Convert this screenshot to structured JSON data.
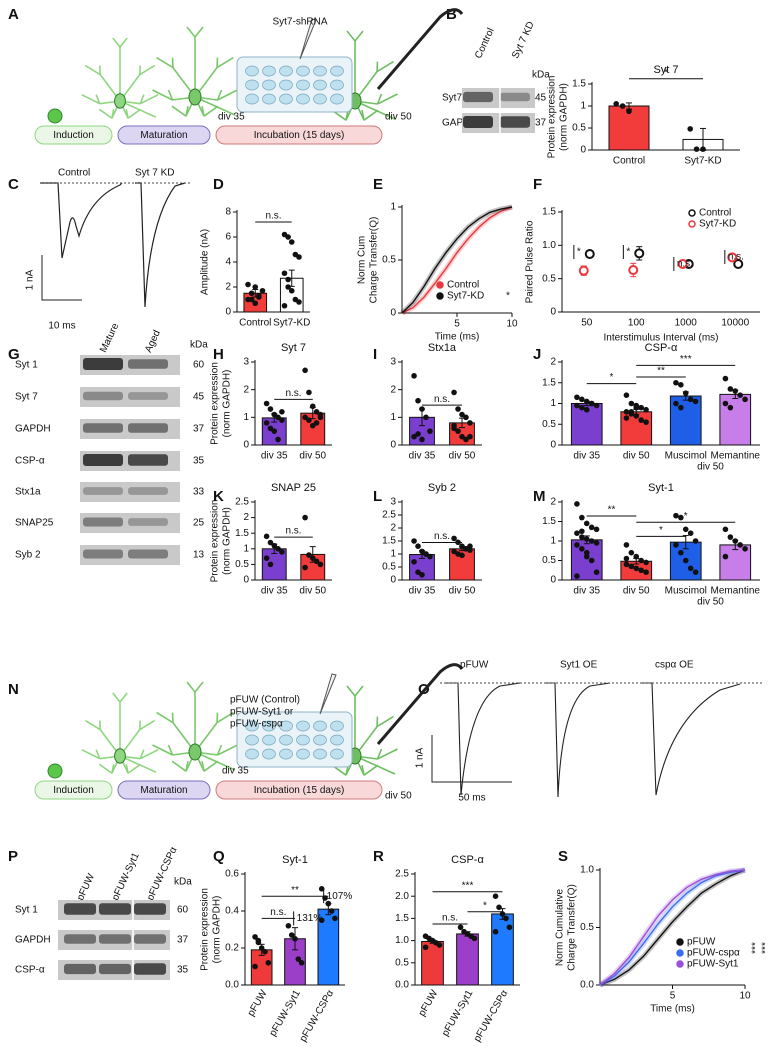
{
  "panel_labels": [
    "A",
    "B",
    "C",
    "D",
    "E",
    "F",
    "G",
    "H",
    "I",
    "J",
    "K",
    "L",
    "M",
    "N",
    "O",
    "P",
    "Q",
    "R",
    "S"
  ],
  "diagram_a": {
    "construct": [
      "Syt7-shRNA"
    ],
    "div": [
      "div 35",
      "div 50"
    ],
    "stages": [
      "Induction",
      "Maturation",
      "Incubation (15 days)"
    ]
  },
  "diagram_n": {
    "construct": [
      "pFUW (Control)",
      "pFUW-Syt1 or",
      "pFUW-cspα"
    ],
    "div": [
      "div 35",
      "div 50"
    ],
    "stages": [
      "Induction",
      "Maturation",
      "Incubation (15 days)"
    ]
  },
  "blot_b": {
    "lanes": [
      "Control",
      "Syt 7 KD"
    ],
    "kda_header": "kDa",
    "rows": [
      "Syt7",
      "GAPDH"
    ],
    "kda": [
      45,
      37
    ]
  },
  "blot_g": {
    "lanes": [
      "Mature",
      "Aged"
    ],
    "kda_header": "kDa",
    "rows": [
      "Syt 1",
      "Syt 7",
      "GAPDH",
      "CSP-α",
      "Stx1a",
      "SNAP25",
      "Syb 2"
    ],
    "kda": [
      60,
      45,
      37,
      35,
      33,
      25,
      13
    ]
  },
  "blot_p": {
    "lanes": [
      "pFUW",
      "pFUW-Syt1",
      "pFUW-CSPα"
    ],
    "kda_header": "kDa",
    "rows": [
      "Syt 1",
      "GAPDH",
      "CSP-α"
    ],
    "kda": [
      60,
      37,
      35
    ]
  },
  "trace_c": {
    "labels": [
      "Control",
      "Syt 7 KD"
    ],
    "scale": [
      "1 nA",
      "10 ms"
    ]
  },
  "trace_o": {
    "labels": [
      "pFUW",
      "Syt1 OE",
      "cspα OE"
    ],
    "scale": [
      "1 nA",
      "50 ms"
    ]
  },
  "chart_data": [
    {
      "type": "bar",
      "title": "Syt 7",
      "ylabel": [
        "Protein expression",
        "(norm GAPDH)"
      ],
      "categories": [
        "Control",
        "Syt7-KD"
      ],
      "values": [
        1.0,
        0.24
      ],
      "errors": [
        0.07,
        0.25
      ],
      "colors": [
        "#f23b3b",
        "#ffffff"
      ],
      "points": [
        [
          1.05,
          1.0,
          0.88
        ],
        [
          0.48,
          0.02,
          0.02
        ]
      ],
      "ylim": [
        0,
        1.5
      ],
      "yticks": [
        0,
        0.5,
        1,
        1.5
      ],
      "annotations": [
        "*"
      ]
    },
    {
      "type": "bar",
      "ylabel": [
        "Amplitude (nA)"
      ],
      "categories": [
        "Control",
        "Syt7-KD"
      ],
      "values": [
        1.5,
        2.7
      ],
      "errors": [
        0.3,
        0.65
      ],
      "colors": [
        "#f23b3b",
        "#ffffff"
      ],
      "points": [
        [
          1.0,
          1.5,
          0.7,
          1.2,
          1.7,
          2.2,
          1.0,
          2.0,
          1.3
        ],
        [
          6.2,
          6.0,
          5.6,
          4.6,
          4.4,
          3.1,
          2.6,
          1.7,
          1.0,
          0.8,
          0.5,
          2.0
        ]
      ],
      "ylim": [
        0,
        8
      ],
      "yticks": [
        0,
        2,
        4,
        6,
        8
      ],
      "annotations": [
        "n.s."
      ]
    },
    {
      "type": "line",
      "ylabel": [
        "Norm Cum",
        "Charge Transfer(Q)"
      ],
      "xlabel": "Time (ms)",
      "x": [
        0,
        1,
        2,
        3,
        4,
        5,
        6,
        7,
        8,
        9,
        10
      ],
      "series": [
        {
          "name": "Control",
          "color": "#e8383d",
          "values": [
            0,
            0.05,
            0.15,
            0.28,
            0.42,
            0.57,
            0.7,
            0.81,
            0.9,
            0.96,
            1
          ]
        },
        {
          "name": "Syt7-KD",
          "color": "#111111",
          "values": [
            0,
            0.1,
            0.25,
            0.42,
            0.57,
            0.7,
            0.81,
            0.89,
            0.95,
            0.98,
            1
          ]
        }
      ],
      "xlim": [
        0,
        10
      ],
      "xticks": [
        5,
        10
      ],
      "ylim": [
        0,
        1
      ],
      "yticks": [
        0,
        0.5,
        1
      ],
      "annotations": [
        "*"
      ]
    },
    {
      "type": "dot",
      "ylabel": [
        "Paired Pulse Ratio"
      ],
      "xlabel": "Interstimulus Interval (ms)",
      "categories": [
        "50",
        "100",
        "1000",
        "10000"
      ],
      "series": [
        {
          "name": "Control",
          "color": "#111111",
          "values": [
            0.87,
            0.88,
            0.72,
            0.72
          ],
          "errors": [
            0.05,
            0.1,
            0.05,
            0.05
          ]
        },
        {
          "name": "Syt7-KD",
          "color": "#e8383d",
          "values": [
            0.62,
            0.63,
            0.72,
            0.82
          ],
          "errors": [
            0.07,
            0.1,
            0.05,
            0.05
          ]
        }
      ],
      "ylim": [
        0,
        1.5
      ],
      "yticks": [
        0,
        0.5,
        {
          "value": 1,
          "label": "1.0"
        },
        1.5
      ],
      "annotations": [
        "*",
        "*",
        "n.s.",
        "n.s."
      ]
    },
    {
      "type": "bar",
      "title": "Syt 7",
      "ylabel": [
        "Protein expression",
        "(norm GAPDH)"
      ],
      "categories": [
        "div 35",
        "div 50"
      ],
      "values": [
        0.98,
        1.15
      ],
      "errors": [
        0.15,
        0.2
      ],
      "colors": [
        "#7a3fcf",
        "#f23b3b"
      ],
      "points": [
        [
          1.5,
          1.3,
          1.1,
          1.0,
          0.9,
          0.8,
          0.6,
          0.5,
          0.2,
          1.2
        ],
        [
          2.7,
          1.9,
          1.4,
          1.2,
          1.1,
          1.0,
          0.9,
          0.7,
          0.8,
          1.0
        ]
      ],
      "ylim": [
        0,
        3
      ],
      "yticks": [
        0,
        1,
        2,
        3
      ],
      "annotations": [
        "n.s."
      ]
    },
    {
      "type": "bar",
      "title": "Stx1a",
      "categories": [
        "div 35",
        "div 50"
      ],
      "values": [
        1.0,
        0.8
      ],
      "errors": [
        0.3,
        0.17
      ],
      "colors": [
        "#7a3fcf",
        "#f23b3b"
      ],
      "points": [
        [
          2.5,
          1.6,
          1.3,
          1.0,
          0.5,
          0.3,
          0.4,
          0.2
        ],
        [
          1.9,
          1.3,
          1.1,
          1.0,
          0.8,
          0.6,
          0.5,
          0.3,
          0.2,
          0.3,
          0.7
        ]
      ],
      "ylim": [
        0,
        3
      ],
      "yticks": [
        0,
        1,
        2,
        3
      ],
      "annotations": [
        "n.s."
      ]
    },
    {
      "type": "bar",
      "title": "CSP-α",
      "categories": [
        "div 35",
        "div 50",
        "Muscimol",
        "Memantine"
      ],
      "x_sublabel": "div 50",
      "values": [
        1.0,
        0.8,
        1.18,
        1.22
      ],
      "errors": [
        0.05,
        0.06,
        0.1,
        0.1
      ],
      "colors": [
        "#7a3fcf",
        "#f23b3b",
        "#1f5fe8",
        "#c77ee8"
      ],
      "points": [
        [
          1.15,
          1.1,
          1.05,
          1.0,
          0.95,
          0.95,
          0.9,
          0.85,
          1.0
        ],
        [
          1.2,
          1.0,
          0.95,
          0.9,
          0.85,
          0.8,
          0.75,
          0.7,
          0.6,
          0.55,
          0.65,
          0.8,
          0.9
        ],
        [
          1.5,
          1.45,
          1.25,
          1.1,
          1.05,
          1.0,
          0.9
        ],
        [
          1.6,
          1.35,
          1.3,
          1.2,
          1.1,
          1.0,
          0.9
        ]
      ],
      "ylim": [
        0,
        2
      ],
      "yticks": [
        0,
        0.5,
        1,
        1.5,
        2
      ],
      "annotations": [
        "*",
        "**",
        "***"
      ]
    },
    {
      "type": "bar",
      "title": "SNAP 25",
      "ylabel": [
        "Protein expression",
        "(norm GAPDH)"
      ],
      "categories": [
        "div 35",
        "div 50"
      ],
      "values": [
        1.0,
        0.82
      ],
      "errors": [
        0.15,
        0.25
      ],
      "colors": [
        "#7a3fcf",
        "#f23b3b"
      ],
      "points": [
        [
          1.4,
          1.2,
          1.1,
          1.0,
          0.9,
          0.7,
          0.5
        ],
        [
          2.0,
          0.8,
          0.7,
          0.6,
          0.5,
          0.4
        ]
      ],
      "ylim": [
        0,
        2.5
      ],
      "yticks": [
        0,
        0.5,
        1,
        1.5,
        2,
        2.5
      ],
      "annotations": [
        "n.s."
      ]
    },
    {
      "type": "bar",
      "title": "Syb 2",
      "categories": [
        "div 35",
        "div 50"
      ],
      "values": [
        0.98,
        1.2
      ],
      "errors": [
        0.15,
        0.07
      ],
      "colors": [
        "#7a3fcf",
        "#f23b3b"
      ],
      "points": [
        [
          1.5,
          1.3,
          1.1,
          1.0,
          0.9,
          0.7,
          0.3,
          0.2,
          1.0
        ],
        [
          1.6,
          1.45,
          1.3,
          1.2,
          1.15,
          1.1,
          1.0,
          0.95,
          1.2,
          1.3
        ]
      ],
      "ylim": [
        0,
        3
      ],
      "yticks": [
        0,
        0.5,
        1,
        1.5,
        2,
        2.5,
        3
      ],
      "annotations": [
        "n.s."
      ]
    },
    {
      "type": "bar",
      "title": "Syt-1",
      "categories": [
        "div 35",
        "div 50",
        "Muscimol",
        "Memantine"
      ],
      "x_sublabel": "div 50",
      "values": [
        1.03,
        0.48,
        0.97,
        0.9
      ],
      "errors": [
        0.1,
        0.07,
        0.17,
        0.12
      ],
      "colors": [
        "#7a3fcf",
        "#f23b3b",
        "#1f5fe8",
        "#c77ee8"
      ],
      "points": [
        [
          1.95,
          1.6,
          1.45,
          1.35,
          1.3,
          1.2,
          1.1,
          1.05,
          1.0,
          0.95,
          0.9,
          0.8,
          0.7,
          0.5,
          0.2,
          0.1,
          1.25,
          0.6
        ],
        [
          0.9,
          0.7,
          0.6,
          0.5,
          0.45,
          0.4,
          0.35,
          0.3,
          0.25,
          0.2,
          0.55
        ],
        [
          1.65,
          1.6,
          1.3,
          1.2,
          1.0,
          0.9,
          0.7,
          0.5,
          0.3,
          0.2
        ],
        [
          1.3,
          1.1,
          1.0,
          0.9,
          0.8,
          0.6
        ]
      ],
      "ylim": [
        0,
        2
      ],
      "yticks": [
        0,
        0.5,
        1,
        1.5,
        2
      ],
      "annotations": [
        "**",
        "*",
        "*"
      ]
    },
    {
      "type": "bar",
      "title": "Syt-1",
      "ylabel": [
        "Protein expression",
        "(norm GAPDH)"
      ],
      "categories": [
        "pFUW",
        "pFUW-Syt1",
        "pFUW-CSPα"
      ],
      "values": [
        0.19,
        0.25,
        0.41
      ],
      "errors": [
        0.03,
        0.06,
        0.03
      ],
      "colors": [
        "#ee3a3a",
        "#9b3fc8",
        "#1e7bff"
      ],
      "points": [
        [
          0.26,
          0.23,
          0.2,
          0.18,
          0.12,
          0.1,
          0.24
        ],
        [
          0.32,
          0.27,
          0.25,
          0.14,
          0.12
        ],
        [
          0.52,
          0.47,
          0.44,
          0.4,
          0.36,
          0.35
        ]
      ],
      "ylim": [
        0,
        0.6
      ],
      "yticks": [
        {
          "value": 0,
          "label": "0.0"
        },
        0.2,
        0.4,
        0.6
      ],
      "annotations": [
        "n.s.",
        "131%",
        "**",
        "107%"
      ]
    },
    {
      "type": "bar",
      "title": "CSP-α",
      "categories": [
        "pFUW",
        "pFUW-Syt1",
        "pFUW-CSPα"
      ],
      "values": [
        0.98,
        1.15,
        1.6
      ],
      "errors": [
        0.04,
        0.05,
        0.12
      ],
      "colors": [
        "#ee3a3a",
        "#9b3fc8",
        "#1e7bff"
      ],
      "points": [
        [
          1.1,
          1.05,
          1.0,
          0.95,
          0.9,
          0.85
        ],
        [
          1.3,
          1.2,
          1.15,
          1.1,
          1.05
        ],
        [
          2.0,
          1.75,
          1.6,
          1.5,
          1.3,
          1.2
        ]
      ],
      "ylim": [
        0,
        2.5
      ],
      "yticks": [
        {
          "value": 0,
          "label": "0.0"
        },
        0.5,
        {
          "value": 1,
          "label": "1.0"
        },
        1.5,
        {
          "value": 2,
          "label": "2.0"
        },
        2.5
      ],
      "annotations": [
        "n.s.",
        "*",
        "***"
      ]
    },
    {
      "type": "line",
      "ylabel": [
        "Norm Cumulative",
        "Charge Transfer(Q)"
      ],
      "xlabel": "Time (ms)",
      "x": [
        0,
        1,
        2,
        3,
        4,
        5,
        6,
        7,
        8,
        9,
        10
      ],
      "series": [
        {
          "name": "pFUW",
          "color": "#111111",
          "values": [
            0,
            0.05,
            0.13,
            0.25,
            0.4,
            0.55,
            0.68,
            0.8,
            0.88,
            0.95,
            1
          ]
        },
        {
          "name": "pFUW-cspα",
          "color": "#3a6ef0",
          "values": [
            0,
            0.08,
            0.2,
            0.36,
            0.53,
            0.68,
            0.8,
            0.89,
            0.95,
            0.98,
            1
          ]
        },
        {
          "name": "pFUW-Syt1",
          "color": "#9b4fd8",
          "values": [
            0,
            0.1,
            0.24,
            0.42,
            0.6,
            0.74,
            0.85,
            0.92,
            0.96,
            0.99,
            1
          ]
        }
      ],
      "xlim": [
        0,
        10
      ],
      "xticks": [
        5,
        10
      ],
      "ylim": [
        0,
        1
      ],
      "yticks": [
        {
          "value": 0,
          "label": "0.0"
        },
        0.5,
        {
          "value": 1,
          "label": "1.0"
        }
      ],
      "annotations": [
        "***",
        "***"
      ]
    }
  ]
}
